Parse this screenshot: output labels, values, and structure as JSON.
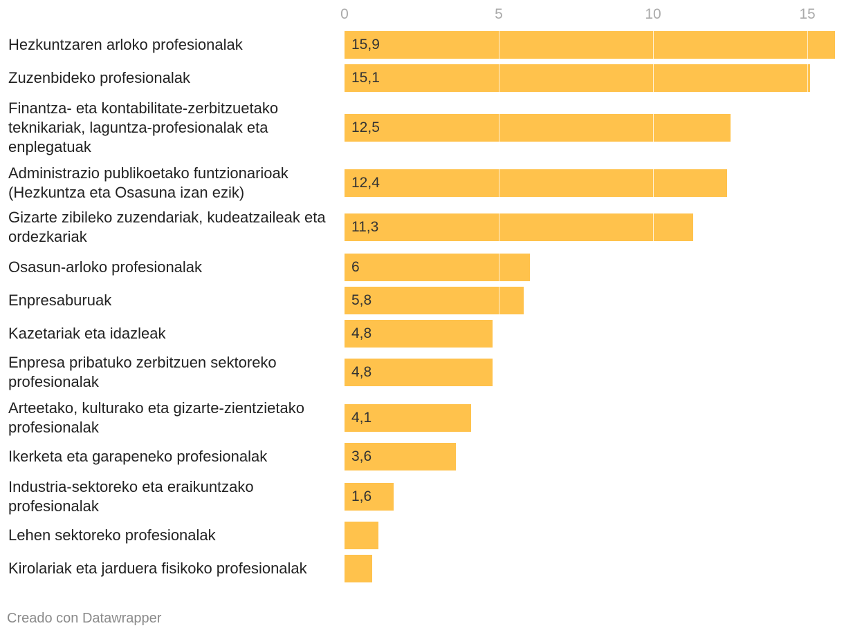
{
  "chart_data": {
    "type": "bar",
    "orientation": "horizontal",
    "bar_color": "#ffc24c",
    "gridline_color": "#ffffff",
    "xlim": [
      0,
      16
    ],
    "x_ticks": [
      "0",
      "5",
      "10",
      "15"
    ],
    "categories": [
      "Hezkuntzaren arloko profesionalak",
      "Zuzenbideko profesionalak",
      "Finantza- eta kontabilitate-zerbitzuetako teknikariak, laguntza-profesionalak eta enplegatuak",
      "Administrazio publikoetako funtzionarioak (Hezkuntza eta Osasuna izan ezik)",
      "Gizarte zibileko zuzendariak, kudeatzaileak eta ordezkariak",
      "Osasun-arloko profesionalak",
      "Enpresaburuak",
      "Kazetariak eta idazleak",
      "Enpresa pribatuko zerbitzuen sektoreko profesionalak",
      "Arteetako, kulturako eta gizarte-zientzietako profesionalak",
      "Ikerketa eta garapeneko profesionalak",
      "Industria-sektoreko eta eraikuntzako profesionalak",
      "Lehen sektoreko profesionalak",
      "Kirolariak eta jarduera fisikoko profesionalak"
    ],
    "values": [
      15.9,
      15.1,
      12.5,
      12.4,
      11.3,
      6,
      5.8,
      4.8,
      4.8,
      4.1,
      3.6,
      1.6,
      1.1,
      0.9
    ],
    "value_labels": [
      "15,9",
      "15,1",
      "12,5",
      "12,4",
      "11,3",
      "6",
      "5,8",
      "4,8",
      "4,8",
      "4,1",
      "3,6",
      "1,6",
      "",
      ""
    ]
  },
  "footer": {
    "credit": "Creado con Datawrapper"
  }
}
